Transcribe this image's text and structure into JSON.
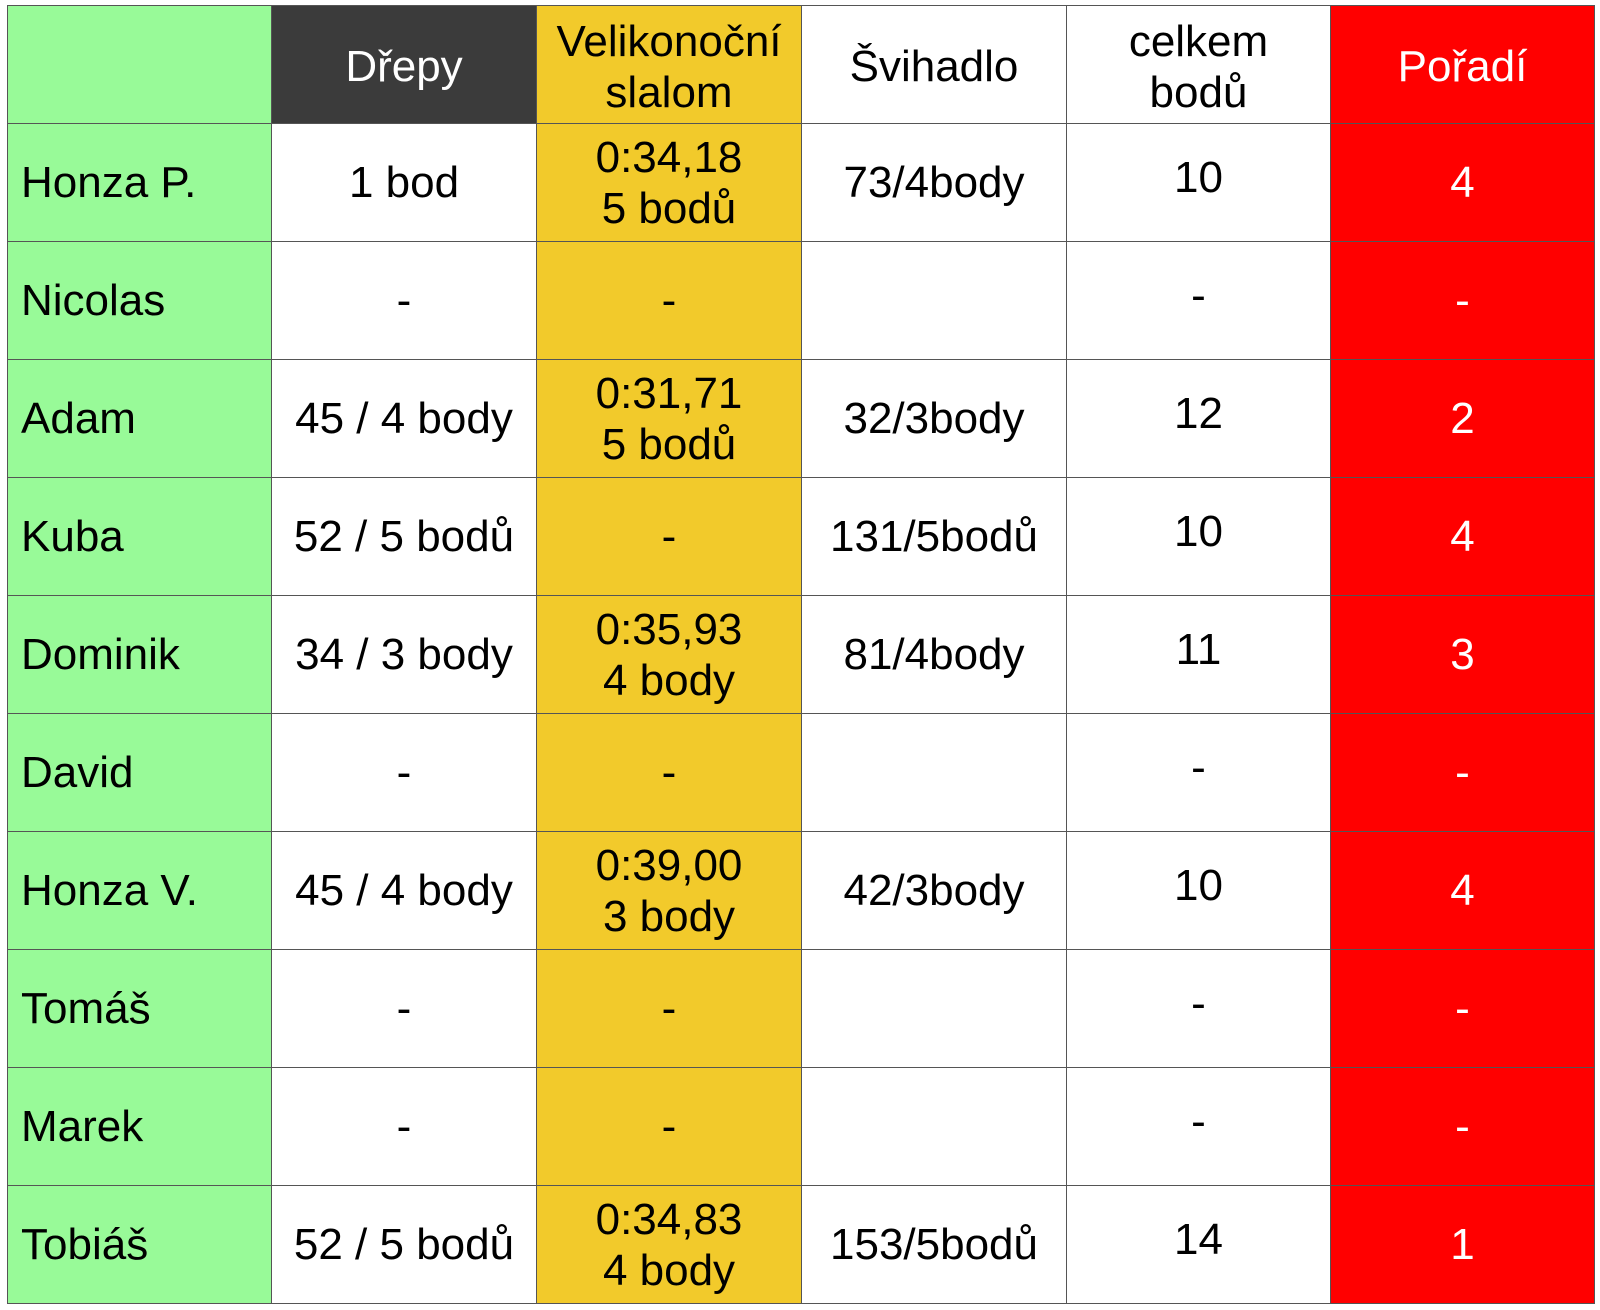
{
  "header": {
    "corner": "",
    "drepy": "Dřepy",
    "slalom_line1": "Velikonoční",
    "slalom_line2": "slalom",
    "svihadlo": "Švihadlo",
    "celkem_line1": "celkem",
    "celkem_line2": "bodů",
    "poradi": "Pořadí"
  },
  "rows": [
    {
      "name": "Honza P.",
      "drepy": "1 bod",
      "slalom_time": "0:34,18",
      "slalom_points": "5 bodů",
      "svihadlo": "73/4body",
      "celkem": "10",
      "poradi": "4"
    },
    {
      "name": "Nicolas",
      "drepy": "-",
      "slalom_time": "-",
      "slalom_points": "",
      "svihadlo": "",
      "celkem": "-",
      "poradi": "-"
    },
    {
      "name": "Adam",
      "drepy": "45 / 4 body",
      "slalom_time": "0:31,71",
      "slalom_points": "5 bodů",
      "svihadlo": "32/3body",
      "celkem": "12",
      "poradi": "2"
    },
    {
      "name": "Kuba",
      "drepy": "52 / 5 bodů",
      "slalom_time": "-",
      "slalom_points": "",
      "svihadlo": "131/5bodů",
      "celkem": "10",
      "poradi": "4"
    },
    {
      "name": "Dominik",
      "drepy": "34 / 3 body",
      "slalom_time": "0:35,93",
      "slalom_points": "4 body",
      "svihadlo": "81/4body",
      "celkem": "11",
      "poradi": "3"
    },
    {
      "name": "David",
      "drepy": "-",
      "slalom_time": "-",
      "slalom_points": "",
      "svihadlo": "",
      "celkem": "-",
      "poradi": "-"
    },
    {
      "name": "Honza V.",
      "drepy": "45 / 4 body",
      "slalom_time": "0:39,00",
      "slalom_points": "3 body",
      "svihadlo": "42/3body",
      "celkem": "10",
      "poradi": "4"
    },
    {
      "name": "Tomáš",
      "drepy": "-",
      "slalom_time": "-",
      "slalom_points": "",
      "svihadlo": "",
      "celkem": "-",
      "poradi": "-"
    },
    {
      "name": "Marek",
      "drepy": "-",
      "slalom_time": "-",
      "slalom_points": "",
      "svihadlo": "",
      "celkem": "-",
      "poradi": "-"
    },
    {
      "name": "Tobiáš",
      "drepy": "52 / 5 bodů",
      "slalom_time": "0:34,83",
      "slalom_points": "4 body",
      "svihadlo": "153/5bodů",
      "celkem": "14",
      "poradi": "1"
    }
  ],
  "colors": {
    "name_column": "#98fa98",
    "drepy_header": "#3b3b3b",
    "slalom_column": "#f2ca2b",
    "poradi_column": "#ff0000",
    "grid_lines": "#555555"
  }
}
